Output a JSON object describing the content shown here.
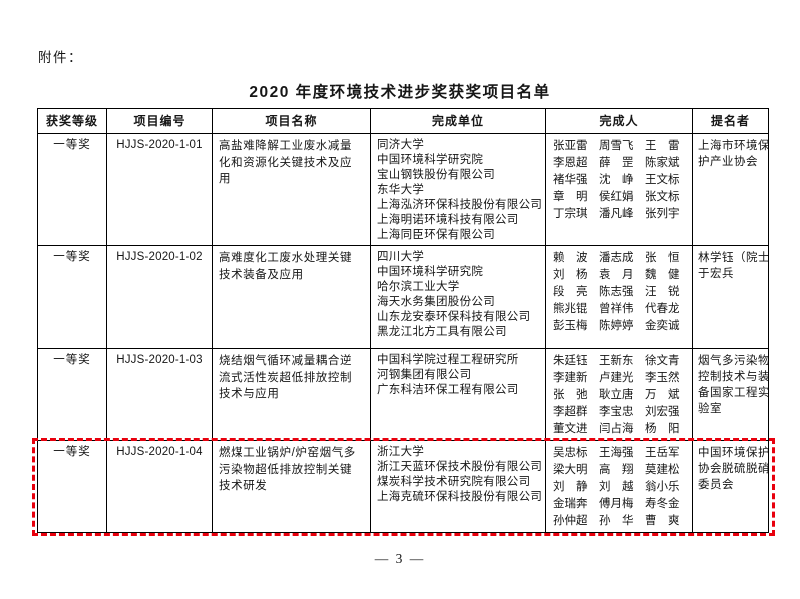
{
  "page": {
    "attachment_label": "附件：",
    "title": "2020 年度环境技术进步奖获奖项目名单",
    "page_number": "— 3 —",
    "highlight_color": "#e8000d"
  },
  "table": {
    "headers": [
      "获奖等级",
      "项目编号",
      "项目名称",
      "完成单位",
      "完成人",
      "提名者"
    ],
    "rows": [
      {
        "award_level": "一等奖",
        "project_code": "HJJS-2020-1-01",
        "project_name": "高盐难降解工业废水减量化和资源化关键技术及应用",
        "units": [
          "同济大学",
          "中国环境科学研究院",
          "宝山钢铁股份有限公司",
          "东华大学",
          "上海泓济环保科技股份有限公司",
          "上海明诺环境科技有限公司",
          "上海同臣环保有限公司"
        ],
        "people": [
          [
            "张亚雷",
            "周雪飞",
            "王　雷"
          ],
          [
            "李恩超",
            "薛　罡",
            "陈家斌"
          ],
          [
            "褚华强",
            "沈　峥",
            "王文标"
          ],
          [
            "章　明",
            "侯红娟",
            "张文标"
          ],
          [
            "丁宗琪",
            "潘凡峰",
            "张列宇"
          ]
        ],
        "nominator_lines": [
          "上海市环境保",
          "护产业协会"
        ],
        "highlighted": false
      },
      {
        "award_level": "一等奖",
        "project_code": "HJJS-2020-1-02",
        "project_name": "高难度化工废水处理关键技术装备及应用",
        "units": [
          "四川大学",
          "中国环境科学研究院",
          "哈尔滨工业大学",
          "海天水务集团股份公司",
          "山东龙安泰环保科技有限公司",
          "黑龙江北方工具有限公司"
        ],
        "people": [
          [
            "赖　波",
            "潘志成",
            "张　恒"
          ],
          [
            "刘　杨",
            "袁　月",
            "魏　健"
          ],
          [
            "段　亮",
            "陈志强",
            "汪　锐"
          ],
          [
            "熊兆锟",
            "曾祥伟",
            "代春龙"
          ],
          [
            "彭玉梅",
            "陈婷婷",
            "金奕诚"
          ]
        ],
        "nominator_lines": [
          "林学钰（院士）",
          "于宏兵"
        ],
        "highlighted": false
      },
      {
        "award_level": "一等奖",
        "project_code": "HJJS-2020-1-03",
        "project_name": "烧结烟气循环减量耦合逆流式活性炭超低排放控制技术与应用",
        "units": [
          "中国科学院过程工程研究所",
          "河钢集团有限公司",
          "广东科洁环保工程有限公司"
        ],
        "people": [
          [
            "朱廷钰",
            "王新东",
            "徐文青"
          ],
          [
            "李建新",
            "卢建光",
            "李玉然"
          ],
          [
            "张　弛",
            "耿立唐",
            "万　斌"
          ],
          [
            "李超群",
            "李宝忠",
            "刘宏强"
          ],
          [
            "董文进",
            "闫占海",
            "杨　阳"
          ]
        ],
        "nominator_lines": [
          "烟气多污染物",
          "控制技术与装",
          "备国家工程实",
          "验室"
        ],
        "highlighted": false
      },
      {
        "award_level": "一等奖",
        "project_code": "HJJS-2020-1-04",
        "project_name": "燃煤工业锅炉/炉窑烟气多污染物超低排放控制关键技术研发",
        "units": [
          "浙江大学",
          "浙江天蓝环保技术股份有限公司",
          "煤炭科学技术研究院有限公司",
          "上海克硫环保科技股份有限公司"
        ],
        "people": [
          [
            "吴忠标",
            "王海强",
            "王岳军"
          ],
          [
            "梁大明",
            "高　翔",
            "莫建松"
          ],
          [
            "刘　静",
            "刘　越",
            "翁小乐"
          ],
          [
            "金瑞奔",
            "傅月梅",
            "寿冬金"
          ],
          [
            "孙仲超",
            "孙　华",
            "曹　爽"
          ]
        ],
        "nominator_lines": [
          "中国环境保护",
          "协会脱硫脱硝",
          "委员会"
        ],
        "highlighted": true
      }
    ]
  }
}
